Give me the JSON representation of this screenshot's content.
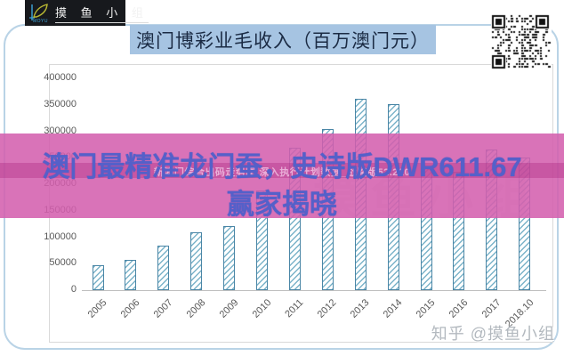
{
  "logo": {
    "brand": "MOYU",
    "name": "摸 鱼 小 组"
  },
  "header": {
    "title": "澳门博彩业毛收入（百万澳门元）"
  },
  "overlay": {
    "line1": "澳门最精准龙门蚕，史诗版DWR611.67",
    "line2": "赢家揭晓",
    "strip_text": "新澳门综合出码走势图,深入执行计划数据_战略版52.220",
    "band_color": "#d35ead",
    "text_color": "#5560c9"
  },
  "watermark": {
    "zhihu": "知乎 @摸鱼小组",
    "chart_bg": "摸鱼小组"
  },
  "chart_data": {
    "type": "bar",
    "title": "澳门博彩业毛收入（百万澳门元）",
    "categories": [
      "2005",
      "2006",
      "2007",
      "2008",
      "2009",
      "2010",
      "2011",
      "2012",
      "2013",
      "2014",
      "2015",
      "2016",
      "2017",
      "2018.10"
    ],
    "values": [
      47000,
      57500,
      84000,
      110000,
      120500,
      188300,
      269000,
      305000,
      361900,
      352000,
      231000,
      223200,
      265700,
      250000
    ],
    "xlabel": "",
    "ylabel": "",
    "ylim": [
      0,
      400000
    ],
    "ytick_step": 50000,
    "grid": false,
    "legend": null,
    "bar_border_color": "#4a86a6",
    "bar_hatch_color": "#74afc6"
  }
}
